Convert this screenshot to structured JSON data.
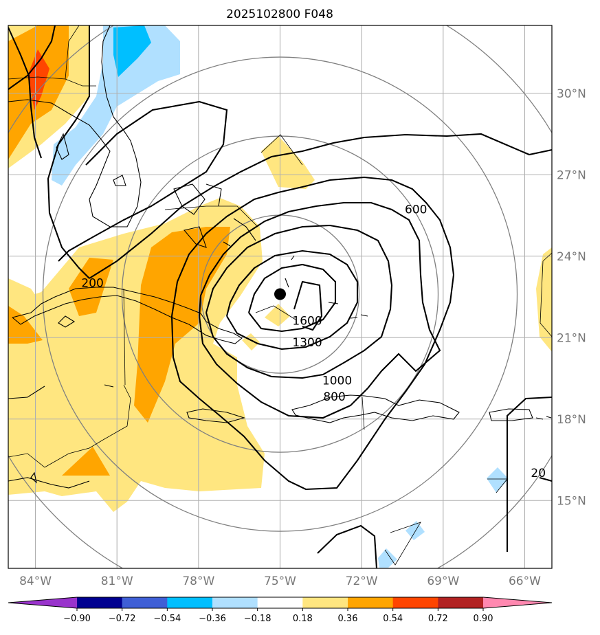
{
  "title": "2025102800 F048",
  "map": {
    "lon_range": [
      -85.0,
      -65.0
    ],
    "lat_range": [
      12.5,
      32.5
    ],
    "lon_ticks": [
      {
        "value": -84,
        "label": "84°W"
      },
      {
        "value": -81,
        "label": "81°W"
      },
      {
        "value": -78,
        "label": "78°W"
      },
      {
        "value": -75,
        "label": "75°W"
      },
      {
        "value": -72,
        "label": "72°W"
      },
      {
        "value": -69,
        "label": "69°W"
      },
      {
        "value": -66,
        "label": "66°W"
      }
    ],
    "lat_ticks": [
      {
        "value": 30,
        "label": "30°N"
      },
      {
        "value": 27,
        "label": "27°N"
      },
      {
        "value": 24,
        "label": "24°N"
      },
      {
        "value": 21,
        "label": "21°N"
      },
      {
        "value": 18,
        "label": "18°N"
      },
      {
        "value": 15,
        "label": "15°N"
      }
    ],
    "gridlines": true,
    "storm_center": {
      "lon": -75.0,
      "lat": 22.6
    },
    "contour_labels": [
      {
        "text": "600",
        "lon": -70.0,
        "lat": 25.7
      },
      {
        "text": "200",
        "lon": -81.9,
        "lat": 23.0
      },
      {
        "text": "1600",
        "lon": -74.0,
        "lat": 21.6
      },
      {
        "text": "1300",
        "lon": -74.0,
        "lat": 20.8
      },
      {
        "text": "1000",
        "lon": -72.9,
        "lat": 19.4
      },
      {
        "text": "800",
        "lon": -73.0,
        "lat": 18.8
      },
      {
        "text": "20",
        "lon": -65.5,
        "lat": 16.0
      }
    ]
  },
  "colorbar": {
    "colors": [
      "#9933cc",
      "#000090",
      "#3f5fd6",
      "#00bfff",
      "#b0e0ff",
      "#ffffff",
      "#ffe680",
      "#ffa500",
      "#ff4500",
      "#b22222",
      "#ff88b0"
    ],
    "tick_labels": [
      "−0.90",
      "−0.72",
      "−0.54",
      "−0.36",
      "−0.18",
      "0.18",
      "0.36",
      "0.54",
      "0.72",
      "0.90"
    ]
  },
  "colors": {
    "contour": "#000000",
    "range_ring": "#808080",
    "grid": "#b0b0b0",
    "coast": "#000000"
  }
}
